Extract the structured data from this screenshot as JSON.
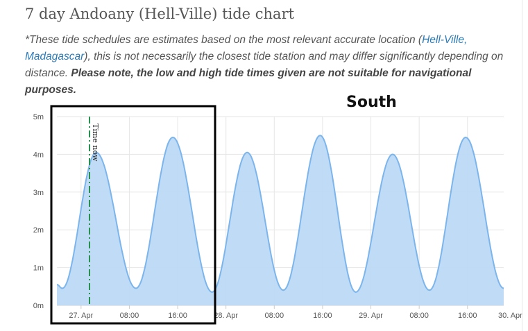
{
  "page": {
    "title": "7 day Andoany (Hell-Ville) tide chart",
    "note": {
      "prefix": "*These tide schedules are estimates based on the most relevant accurate location (",
      "link_text": "Hell-Ville, Madagascar",
      "suffix": "), this is not necessarily the closest tide station and may differ significantly depending on distance. ",
      "bold_text": "Please note, the low and high tide times given are not suitable for navigational purposes."
    }
  },
  "annotation": {
    "label": "South",
    "box_color": "#000000"
  },
  "chart_data": {
    "type": "area",
    "title": "",
    "xlabel": "",
    "ylabel": "",
    "x_unit": "hours from 27. Apr 00:00",
    "xlim": [
      -4,
      70
    ],
    "ylim": [
      0,
      5
    ],
    "y_ticks": [
      "0m",
      "1m",
      "2m",
      "3m",
      "4m",
      "5m"
    ],
    "x_ticks": [
      {
        "x": 0,
        "label": "27. Apr"
      },
      {
        "x": 8,
        "label": "08:00"
      },
      {
        "x": 16,
        "label": "16:00"
      },
      {
        "x": 24,
        "label": "28. Apr"
      },
      {
        "x": 32,
        "label": "08:00"
      },
      {
        "x": 40,
        "label": "16:00"
      },
      {
        "x": 48,
        "label": "29. Apr"
      },
      {
        "x": 56,
        "label": "08:00"
      },
      {
        "x": 64,
        "label": "16:00"
      },
      {
        "x": 72,
        "label": "30. Apr"
      }
    ],
    "series": [
      {
        "name": "",
        "color": "#7cb5ec",
        "fill": "#bcd9f4",
        "extremes": [
          {
            "x": -4,
            "y": 0.55
          },
          {
            "x": -3.1,
            "y": 0.45
          },
          {
            "x": 2.5,
            "y": 4.05
          },
          {
            "x": 9.1,
            "y": 0.45
          },
          {
            "x": 15.2,
            "y": 4.45
          },
          {
            "x": 21.7,
            "y": 0.35
          },
          {
            "x": 27.5,
            "y": 4.05
          },
          {
            "x": 33.5,
            "y": 0.4
          },
          {
            "x": 39.6,
            "y": 4.5
          },
          {
            "x": 45.5,
            "y": 0.35
          },
          {
            "x": 51.6,
            "y": 4.0
          },
          {
            "x": 57.7,
            "y": 0.4
          },
          {
            "x": 63.7,
            "y": 4.45
          },
          {
            "x": 70,
            "y": 0.45
          }
        ]
      }
    ],
    "time_now": {
      "x": 1.4,
      "label": "Time now",
      "color": "#2a9050"
    },
    "grid": true,
    "legend": "none"
  }
}
